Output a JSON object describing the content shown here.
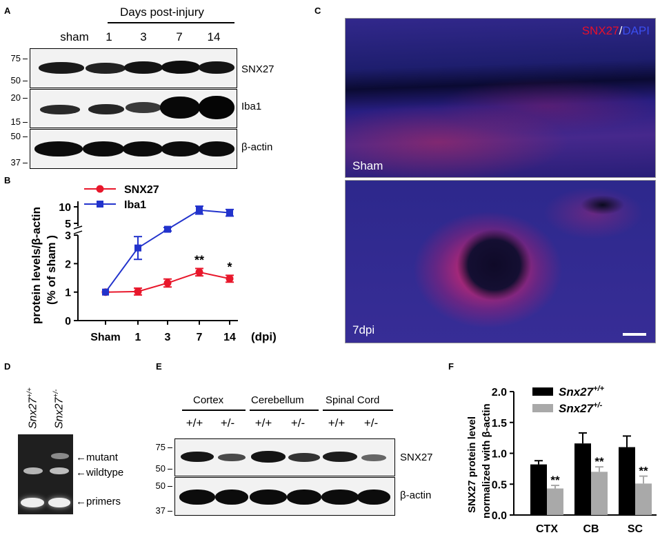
{
  "panels": {
    "A": {
      "letter": "A",
      "header": "Days post-injury",
      "lanes": [
        "sham",
        "1",
        "3",
        "7",
        "14"
      ],
      "blots": [
        {
          "protein": "SNX27",
          "markers": [
            "75",
            "50"
          ]
        },
        {
          "protein": "Iba1",
          "markers": [
            "20",
            "15"
          ]
        },
        {
          "protein": "β-actin",
          "markers": [
            "50",
            "37"
          ]
        }
      ]
    },
    "B": {
      "letter": "B"
    },
    "C": {
      "letter": "C",
      "stain_red": "SNX27",
      "stain_sep": "/",
      "stain_blue": "DAPI",
      "top_label": "Sham",
      "bottom_label": "7dpi",
      "colors": {
        "red": "#e8102b",
        "blue": "#2b3bd6"
      }
    },
    "D": {
      "letter": "D",
      "lanes": [
        "Snx27",
        "Snx27"
      ],
      "lane_sup": [
        "+/+",
        "+/-"
      ],
      "bands": [
        "←mutant",
        "←wildtype",
        "←primers"
      ]
    },
    "E": {
      "letter": "E",
      "regions": [
        "Cortex",
        "Cerebellum",
        "Spinal Cord"
      ],
      "genotypes": [
        "+/+",
        "+/-",
        "+/+",
        "+/-",
        "+/+",
        "+/-"
      ],
      "blots": [
        {
          "protein": "SNX27",
          "markers": [
            "75",
            "50"
          ]
        },
        {
          "protein": "β-actin",
          "markers": [
            "50",
            "37"
          ]
        }
      ]
    },
    "F": {
      "letter": "F"
    }
  },
  "chart_data": [
    {
      "type": "line",
      "panel": "B",
      "x": [
        "Sham",
        "1",
        "3",
        "7",
        "14"
      ],
      "xlabel": "(dpi)",
      "ylabel": "protein levels/β-actin",
      "ylabel2": "(% of sham )",
      "yticks_lower": [
        0,
        1,
        2,
        3
      ],
      "yticks_upper": [
        5,
        10
      ],
      "series": [
        {
          "name": "SNX27",
          "color": "#e8172b",
          "marker": "circle",
          "values": [
            1.0,
            1.02,
            1.32,
            1.7,
            1.47
          ],
          "errors": [
            0.04,
            0.12,
            0.14,
            0.13,
            0.12
          ],
          "annotations": [
            "",
            "",
            "",
            "**",
            "*"
          ]
        },
        {
          "name": "Iba1",
          "color": "#2233cc",
          "marker": "square",
          "values": [
            1.0,
            2.55,
            4.0,
            9.0,
            8.2
          ],
          "errors": [
            0.04,
            0.4,
            0.3,
            1.2,
            1.0
          ],
          "annotations": [
            "",
            "",
            "",
            "",
            ""
          ]
        }
      ],
      "axis_break": true
    },
    {
      "type": "bar",
      "panel": "F",
      "categories": [
        "CTX",
        "CB",
        "SC"
      ],
      "ylabel": "SNX27 protein level",
      "ylabel2": "normalized with β-actin",
      "ylim": [
        0,
        2.0
      ],
      "yticks": [
        "0.0",
        "0.5",
        "1.0",
        "1.5",
        "2.0"
      ],
      "series": [
        {
          "name": "Snx27",
          "sup": "+/+",
          "color": "#000000",
          "values": [
            0.82,
            1.16,
            1.1
          ],
          "errors": [
            0.06,
            0.17,
            0.18
          ]
        },
        {
          "name": "Snx27",
          "sup": "+/-",
          "color": "#a9a9a9",
          "values": [
            0.43,
            0.7,
            0.51
          ],
          "errors": [
            0.05,
            0.08,
            0.12
          ]
        }
      ],
      "annotations": [
        "**",
        "**",
        "**"
      ],
      "legend": "top-left"
    }
  ]
}
